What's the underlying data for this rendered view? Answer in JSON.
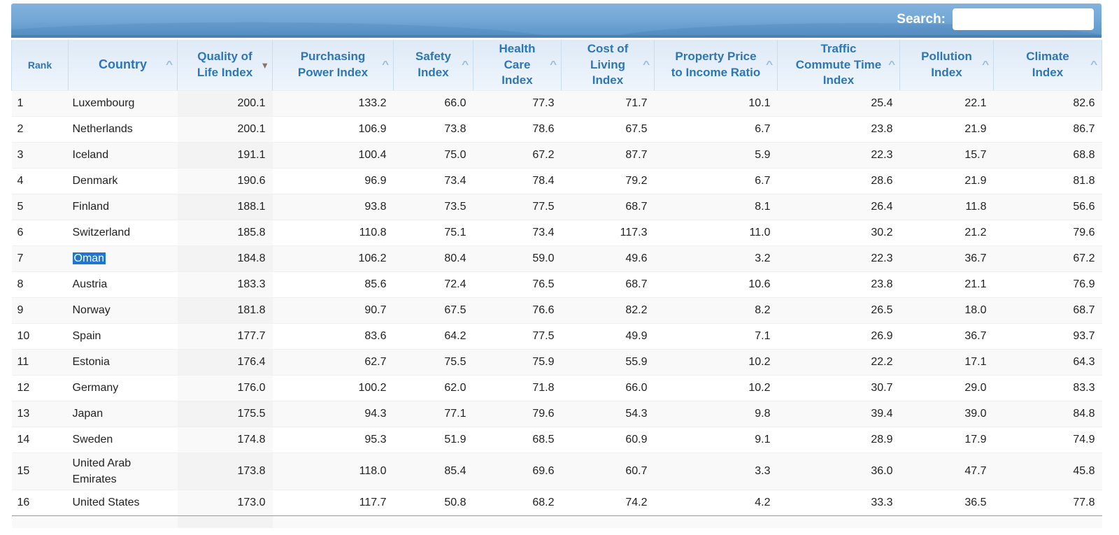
{
  "search": {
    "label": "Search:",
    "value": "",
    "placeholder": ""
  },
  "icons": {
    "sort_asc_glyph": "^",
    "sort_desc_glyph": "▾"
  },
  "colors": {
    "banner_top": "#83b2dd",
    "banner_bottom": "#5e97ca",
    "banner_edge": "#4a82b4",
    "header_bg_top": "#dfeaf7",
    "header_bg_bottom": "#eef5fc",
    "header_text": "#2e76b5",
    "header_border": "#c8ddf0",
    "row_stripe": "#f9f9f9",
    "row_white": "#ffffff",
    "selection": "#1f75d2",
    "data_text": "#222222",
    "caret_inactive": "#9cbcda",
    "caret_active": "#8d7268"
  },
  "table": {
    "columns": [
      {
        "key": "rank",
        "label": "Rank",
        "sort": "none"
      },
      {
        "key": "country",
        "label": "Country",
        "sort": "asc"
      },
      {
        "key": "quality-of-life-index",
        "label": "Quality of\nLife Index",
        "sort": "desc"
      },
      {
        "key": "purchasing-power-index",
        "label": "Purchasing\nPower Index",
        "sort": "asc"
      },
      {
        "key": "safety-index",
        "label": "Safety\nIndex",
        "sort": "asc"
      },
      {
        "key": "health-care-index",
        "label": "Health\nCare\nIndex",
        "sort": "asc"
      },
      {
        "key": "cost-of-living-index",
        "label": "Cost of\nLiving\nIndex",
        "sort": "asc"
      },
      {
        "key": "property-price-to-income-ratio",
        "label": "Property Price\nto Income Ratio",
        "sort": "asc"
      },
      {
        "key": "traffic-commute-time-index",
        "label": "Traffic\nCommute Time\nIndex",
        "sort": "asc"
      },
      {
        "key": "pollution-index",
        "label": "Pollution\nIndex",
        "sort": "asc"
      },
      {
        "key": "climate-index",
        "label": "Climate\nIndex",
        "sort": "asc"
      }
    ],
    "rows": [
      {
        "rank": "1",
        "country": "Luxembourg",
        "selected": false,
        "values": [
          "200.1",
          "133.2",
          "66.0",
          "77.3",
          "71.7",
          "10.1",
          "25.4",
          "22.1",
          "82.6"
        ]
      },
      {
        "rank": "2",
        "country": "Netherlands",
        "selected": false,
        "values": [
          "200.1",
          "106.9",
          "73.8",
          "78.6",
          "67.5",
          "6.7",
          "23.8",
          "21.9",
          "86.7"
        ]
      },
      {
        "rank": "3",
        "country": "Iceland",
        "selected": false,
        "values": [
          "191.1",
          "100.4",
          "75.0",
          "67.2",
          "87.7",
          "5.9",
          "22.3",
          "15.7",
          "68.8"
        ]
      },
      {
        "rank": "4",
        "country": "Denmark",
        "selected": false,
        "values": [
          "190.6",
          "96.9",
          "73.4",
          "78.4",
          "79.2",
          "6.7",
          "28.6",
          "21.9",
          "81.8"
        ]
      },
      {
        "rank": "5",
        "country": "Finland",
        "selected": false,
        "values": [
          "188.1",
          "93.8",
          "73.5",
          "77.5",
          "68.7",
          "8.1",
          "26.4",
          "11.8",
          "56.6"
        ]
      },
      {
        "rank": "6",
        "country": "Switzerland",
        "selected": false,
        "values": [
          "185.8",
          "110.8",
          "75.1",
          "73.4",
          "117.3",
          "11.0",
          "30.2",
          "21.2",
          "79.6"
        ]
      },
      {
        "rank": "7",
        "country": "Oman",
        "selected": true,
        "values": [
          "184.8",
          "106.2",
          "80.4",
          "59.0",
          "49.6",
          "3.2",
          "22.3",
          "36.7",
          "67.2"
        ]
      },
      {
        "rank": "8",
        "country": "Austria",
        "selected": false,
        "values": [
          "183.3",
          "85.6",
          "72.4",
          "76.5",
          "68.7",
          "10.6",
          "23.8",
          "21.1",
          "76.9"
        ]
      },
      {
        "rank": "9",
        "country": "Norway",
        "selected": false,
        "values": [
          "181.8",
          "90.7",
          "67.5",
          "76.6",
          "82.2",
          "8.2",
          "26.5",
          "18.0",
          "68.7"
        ]
      },
      {
        "rank": "10",
        "country": "Spain",
        "selected": false,
        "values": [
          "177.7",
          "83.6",
          "64.2",
          "77.5",
          "49.9",
          "7.1",
          "26.9",
          "36.7",
          "93.7"
        ]
      },
      {
        "rank": "11",
        "country": "Estonia",
        "selected": false,
        "values": [
          "176.4",
          "62.7",
          "75.5",
          "75.9",
          "55.9",
          "10.2",
          "22.2",
          "17.1",
          "64.3"
        ]
      },
      {
        "rank": "12",
        "country": "Germany",
        "selected": false,
        "values": [
          "176.0",
          "100.2",
          "62.0",
          "71.8",
          "66.0",
          "10.2",
          "30.7",
          "29.0",
          "83.3"
        ]
      },
      {
        "rank": "13",
        "country": "Japan",
        "selected": false,
        "values": [
          "175.5",
          "94.3",
          "77.1",
          "79.6",
          "54.3",
          "9.8",
          "39.4",
          "39.0",
          "84.8"
        ]
      },
      {
        "rank": "14",
        "country": "Sweden",
        "selected": false,
        "values": [
          "174.8",
          "95.3",
          "51.9",
          "68.5",
          "60.9",
          "9.1",
          "28.9",
          "17.9",
          "74.9"
        ]
      },
      {
        "rank": "15",
        "country": "United Arab Emirates",
        "selected": false,
        "values": [
          "173.8",
          "118.0",
          "85.4",
          "69.6",
          "60.7",
          "3.3",
          "36.0",
          "47.7",
          "45.8"
        ]
      },
      {
        "rank": "16",
        "country": "United States",
        "selected": false,
        "values": [
          "173.0",
          "117.7",
          "50.8",
          "68.2",
          "74.2",
          "4.2",
          "33.3",
          "36.5",
          "77.8"
        ]
      }
    ]
  }
}
